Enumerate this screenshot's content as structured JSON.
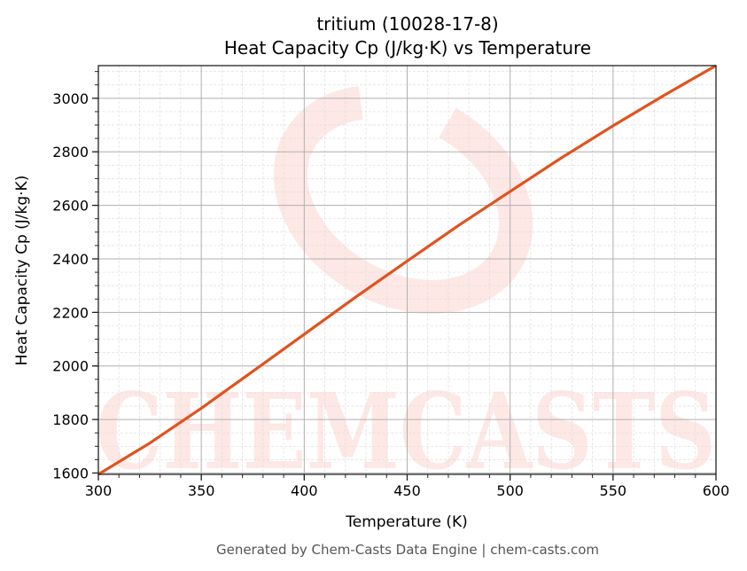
{
  "chart_data": {
    "type": "line",
    "title": "tritium (10028-17-8)",
    "subtitle": "Heat Capacity Cp (J/kg·K) vs Temperature",
    "xlabel": "Temperature (K)",
    "ylabel": "Heat Capacity Cp (J/kg·K)",
    "xlim": [
      300,
      600
    ],
    "ylim": [
      1595,
      3122
    ],
    "xticks": [
      300,
      350,
      400,
      450,
      500,
      550,
      600
    ],
    "yticks": [
      1600,
      1800,
      2000,
      2200,
      2400,
      2600,
      2800,
      3000
    ],
    "grid": true,
    "series": [
      {
        "color": "#e0531f",
        "x": [
          300,
          325,
          350,
          375,
          400,
          425,
          450,
          475,
          500,
          525,
          550,
          575,
          600
        ],
        "y": [
          1595,
          1712,
          1842,
          1980,
          2118,
          2257,
          2392,
          2525,
          2652,
          2778,
          2897,
          3012,
          3122
        ]
      }
    ]
  },
  "watermark": "CHEMCASTS",
  "footer": "Generated by Chem-Casts Data Engine | chem-casts.com"
}
